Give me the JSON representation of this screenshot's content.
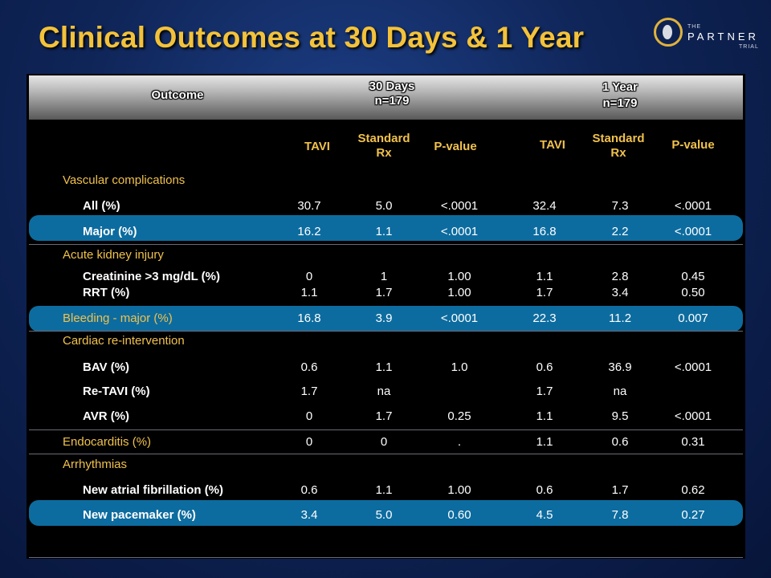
{
  "title": "Clinical Outcomes at 30 Days & 1 Year",
  "logo": {
    "small": "THE",
    "main": "PARTNER",
    "sub": "TRIAL"
  },
  "header": {
    "outcome": "Outcome",
    "days30": "30 Days",
    "days30_n": "n=179",
    "year1": "1 Year",
    "year1_n": "n=179"
  },
  "columns": {
    "tavi": "TAVI",
    "std_line1": "Standard",
    "std_line2": "Rx",
    "pvalue": "P-value"
  },
  "rows": {
    "vascular": "Vascular complications",
    "all": {
      "label": "All (%)",
      "v": [
        "30.7",
        "5.0",
        "<.0001",
        "32.4",
        "7.3",
        "<.0001"
      ]
    },
    "major": {
      "label": "Major (%)",
      "v": [
        "16.2",
        "1.1",
        "<.0001",
        "16.8",
        "2.2",
        "<.0001"
      ]
    },
    "aki": "Acute kidney injury",
    "creatinine": {
      "label": "Creatinine >3 mg/dL  (%)",
      "v": [
        "0",
        "1",
        "1.00",
        "1.1",
        "2.8",
        "0.45"
      ]
    },
    "rrt": {
      "label": "RRT (%)",
      "v": [
        "1.1",
        "1.7",
        "1.00",
        "1.7",
        "3.4",
        "0.50"
      ]
    },
    "bleeding": {
      "label": "Bleeding - major (%)",
      "v": [
        "16.8",
        "3.9",
        "<.0001",
        "22.3",
        "11.2",
        "0.007"
      ]
    },
    "cardiac": "Cardiac re-intervention",
    "bav": {
      "label": "BAV (%)",
      "v": [
        "0.6",
        "1.1",
        "1.0",
        "0.6",
        "36.9",
        "<.0001"
      ]
    },
    "retavi": {
      "label": "Re-TAVI (%)",
      "v": [
        "1.7",
        "na",
        "",
        "1.7",
        "na",
        ""
      ]
    },
    "avr": {
      "label": "AVR (%)",
      "v": [
        "0",
        "1.7",
        "0.25",
        "1.1",
        "9.5",
        "<.0001"
      ]
    },
    "endo": {
      "label": "Endocarditis (%)",
      "v": [
        "0",
        "0",
        ".",
        "1.1",
        "0.6",
        "0.31"
      ]
    },
    "arrhythmias": "Arrhythmias",
    "afib": {
      "label": "New atrial fibrillation (%)",
      "v": [
        "0.6",
        "1.1",
        "1.00",
        "0.6",
        "1.7",
        "0.62"
      ]
    },
    "pacemaker": {
      "label": "New pacemaker (%)",
      "v": [
        "3.4",
        "5.0",
        "0.60",
        "4.5",
        "7.8",
        "0.27"
      ]
    }
  }
}
